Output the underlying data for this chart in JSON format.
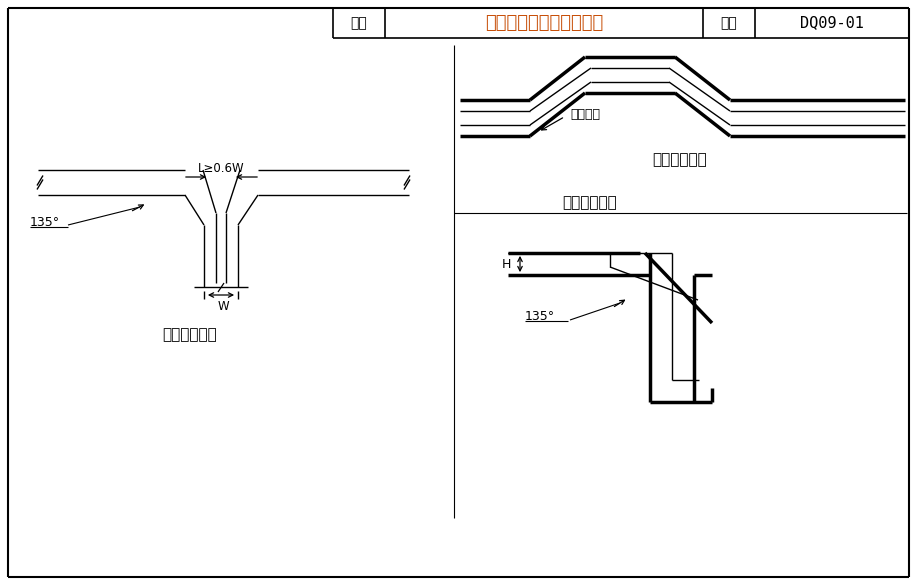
{
  "title_text": "电缆桥架变向处连接做法",
  "fig_name_label": "图名",
  "fig_num_label": "图号",
  "fig_num": "DQ09-01",
  "label_135_left": "135°",
  "label_L": "L≥0.6W",
  "label_W": "W",
  "label_H": "H",
  "label_135_right": "135°",
  "label_wanjiao": "翻弯角度",
  "caption1": "槽架水平三通",
  "caption2": "槽架垂直弯头",
  "caption3": "槽架水平翻弯",
  "line_color": "#000000",
  "title_color": "#c8500a",
  "bg_color": "#ffffff"
}
